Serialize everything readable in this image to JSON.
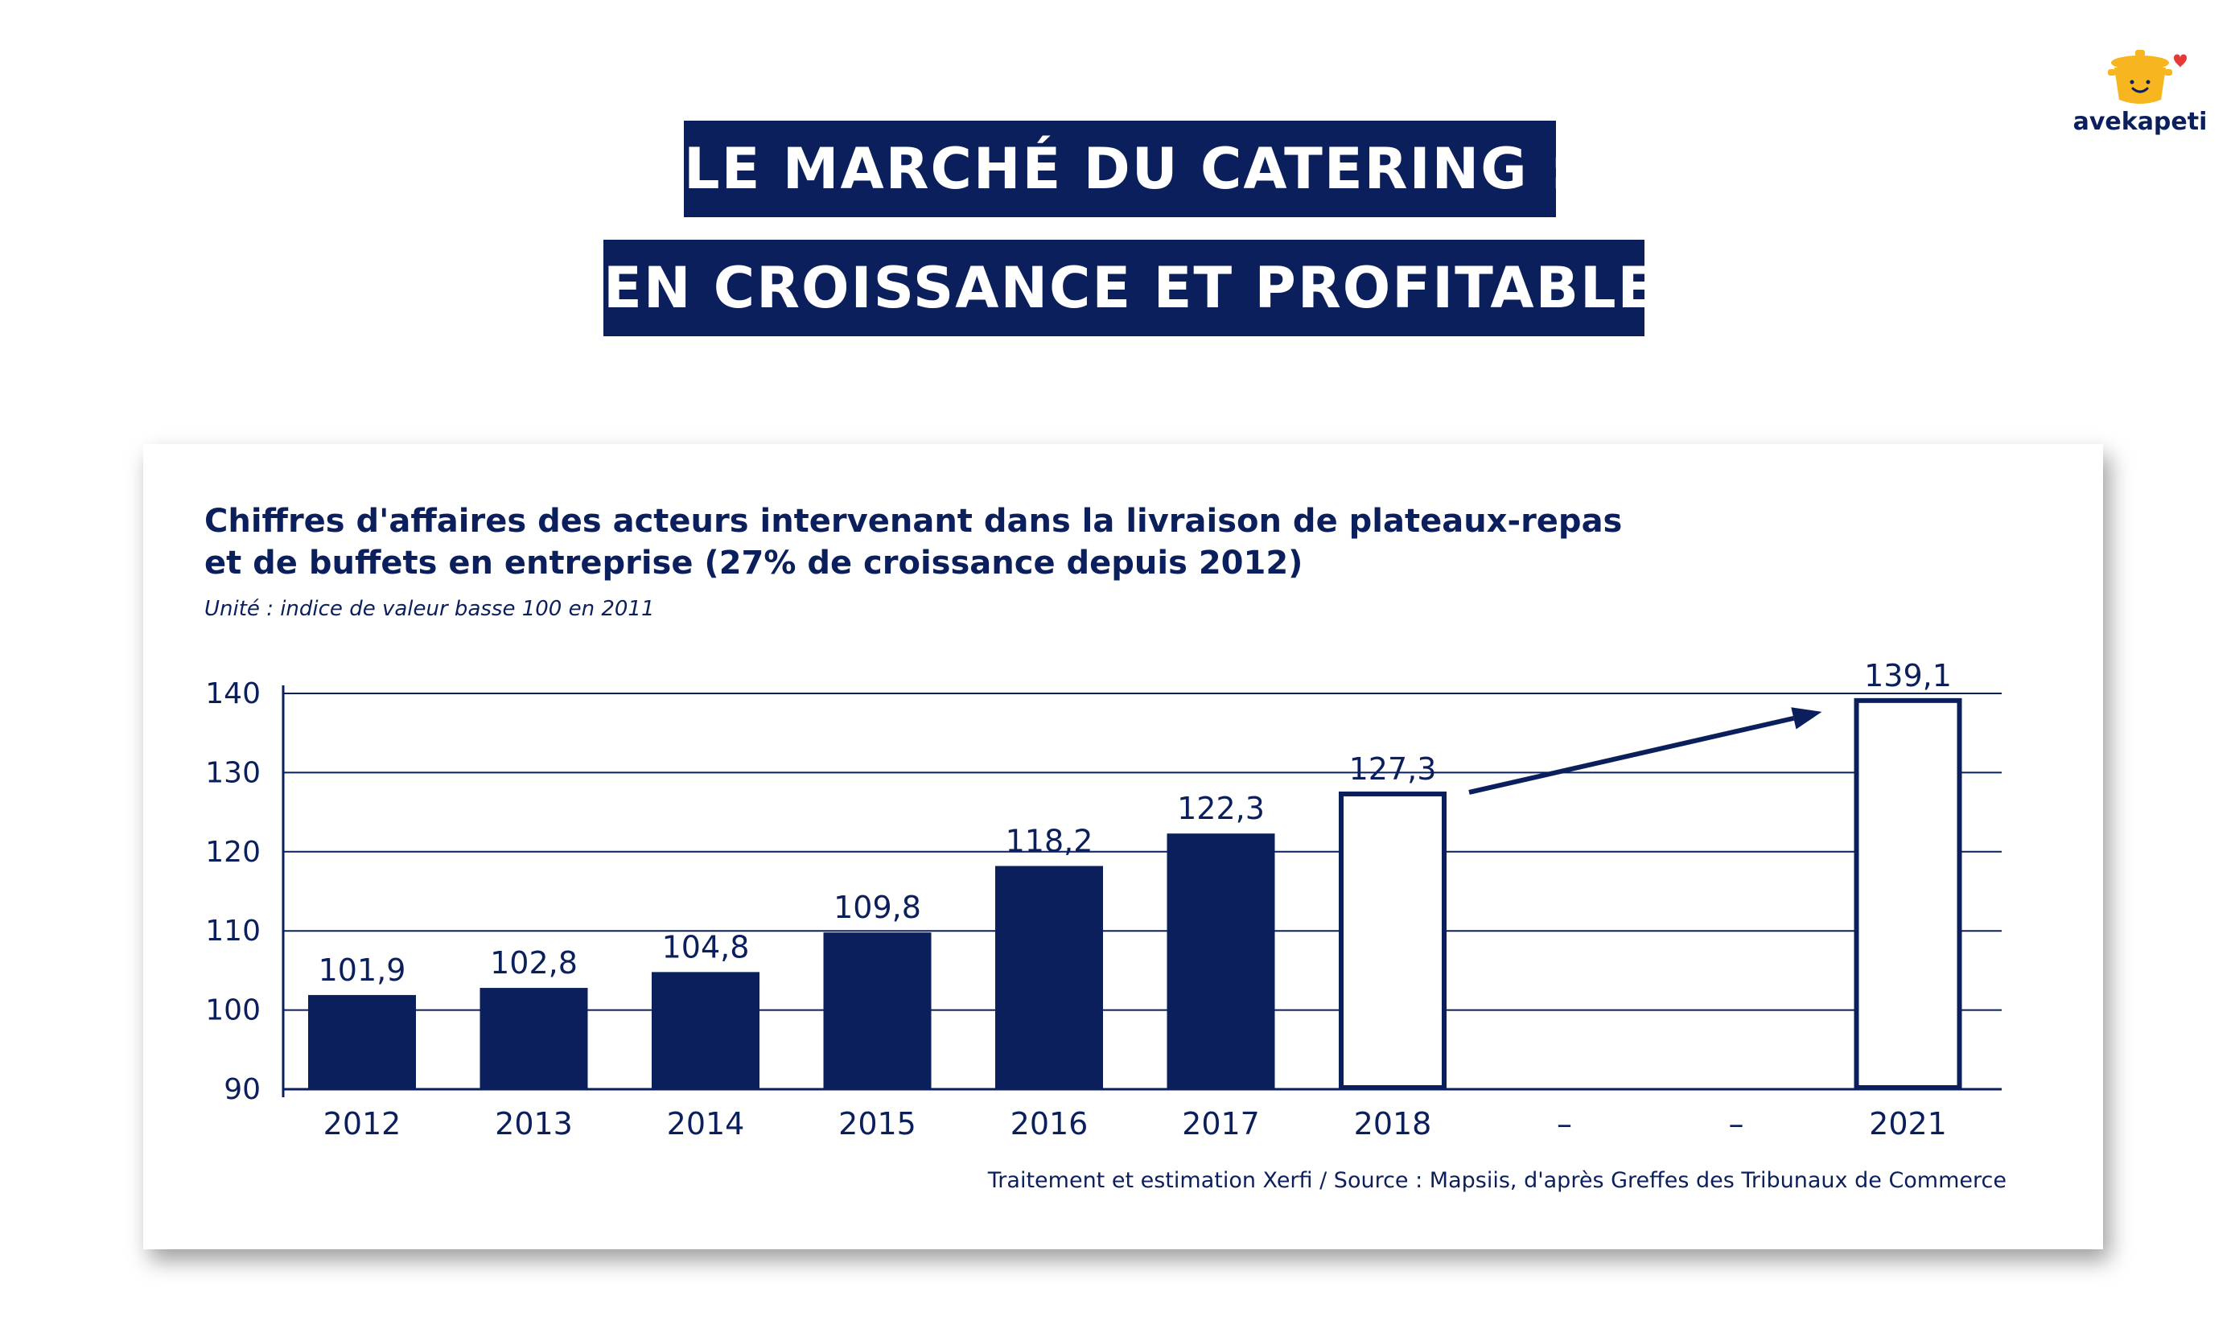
{
  "header": {
    "title_line1": "LE MARCHÉ DU CATERING :",
    "title_line2": "EN CROISSANCE ET PROFITABLE"
  },
  "logo": {
    "text": "avekapeti"
  },
  "colors": {
    "navy": "#0b1f5c",
    "white": "#ffffff",
    "logo_yellow": "#f7b520",
    "heart": "#e53935"
  },
  "chart_data": {
    "type": "bar",
    "title": "Chiffres d'affaires des acteurs intervenant dans la livraison de plateaux-repas et de buffets en entreprise (27% de croissance depuis 2012)",
    "title_lines": [
      "Chiffres d'affaires des acteurs intervenant dans la livraison de plateaux-repas",
      "et de buffets en entreprise (27% de croissance depuis 2012)"
    ],
    "subtitle": "Unité : indice de valeur basse 100 en 2011",
    "source": "Traitement et estimation Xerfi / Source : Mapsiis, d'après Greffes des Tribunaux de Commerce",
    "categories": [
      "2012",
      "2013",
      "2014",
      "2015",
      "2016",
      "2017",
      "2018",
      "–",
      "–",
      "2021"
    ],
    "values": [
      101.9,
      102.8,
      104.8,
      109.8,
      118.2,
      122.3,
      127.3,
      null,
      null,
      139.1
    ],
    "value_labels": [
      "101,9",
      "102,8",
      "104,8",
      "109,8",
      "118,2",
      "122,3",
      "127,3",
      "",
      "",
      "139,1"
    ],
    "bar_style": [
      "filled",
      "filled",
      "filled",
      "filled",
      "filled",
      "filled",
      "outline",
      "none",
      "none",
      "outline"
    ],
    "yticks": [
      90,
      100,
      110,
      120,
      130,
      140
    ],
    "ylim": [
      90,
      140
    ],
    "grid": true,
    "annotations": [
      "arrow from 2018 to 2021"
    ]
  }
}
